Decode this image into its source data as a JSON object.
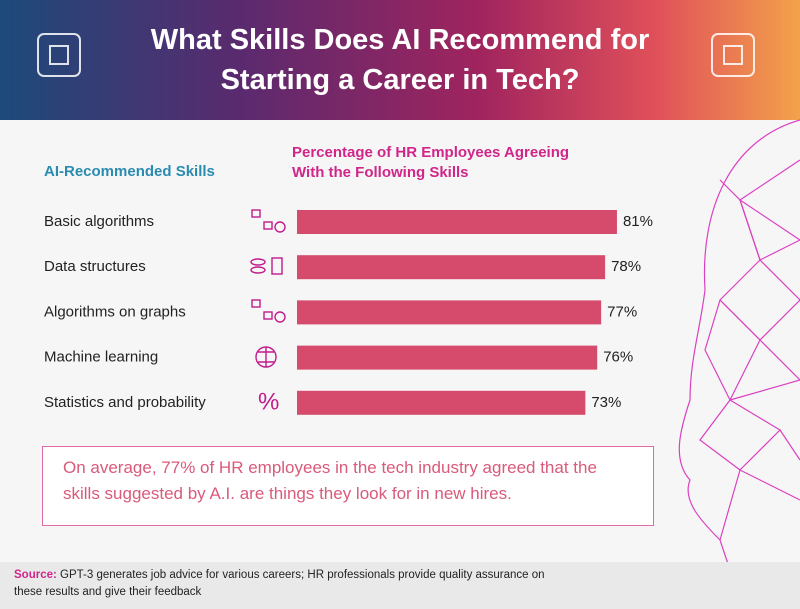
{
  "chart_data": {
    "type": "bar",
    "orientation": "horizontal",
    "title": "What Skills Does AI Recommend for Starting a Career in Tech?",
    "category_header": "AI-Recommended Skills",
    "value_header": "Percentage of HR Employees Agreeing With the Following Skills",
    "categories": [
      "Basic algorithms",
      "Data structures",
      "Algorithms on graphs",
      "Machine learning",
      "Statistics and probability"
    ],
    "values": [
      81,
      78,
      77,
      76,
      73
    ],
    "value_labels": [
      "81%",
      "78%",
      "77%",
      "76%",
      "73%"
    ],
    "color": "#d64a6b",
    "callout": "On average, 77% of HR employees in the tech industry agreed that the skills suggested by A.I. are things they look for in new hires.",
    "source_label": "Source:",
    "source": "GPT-3 generates job advice for various careers; HR professionals provide quality assurance on these results and give their feedback"
  }
}
